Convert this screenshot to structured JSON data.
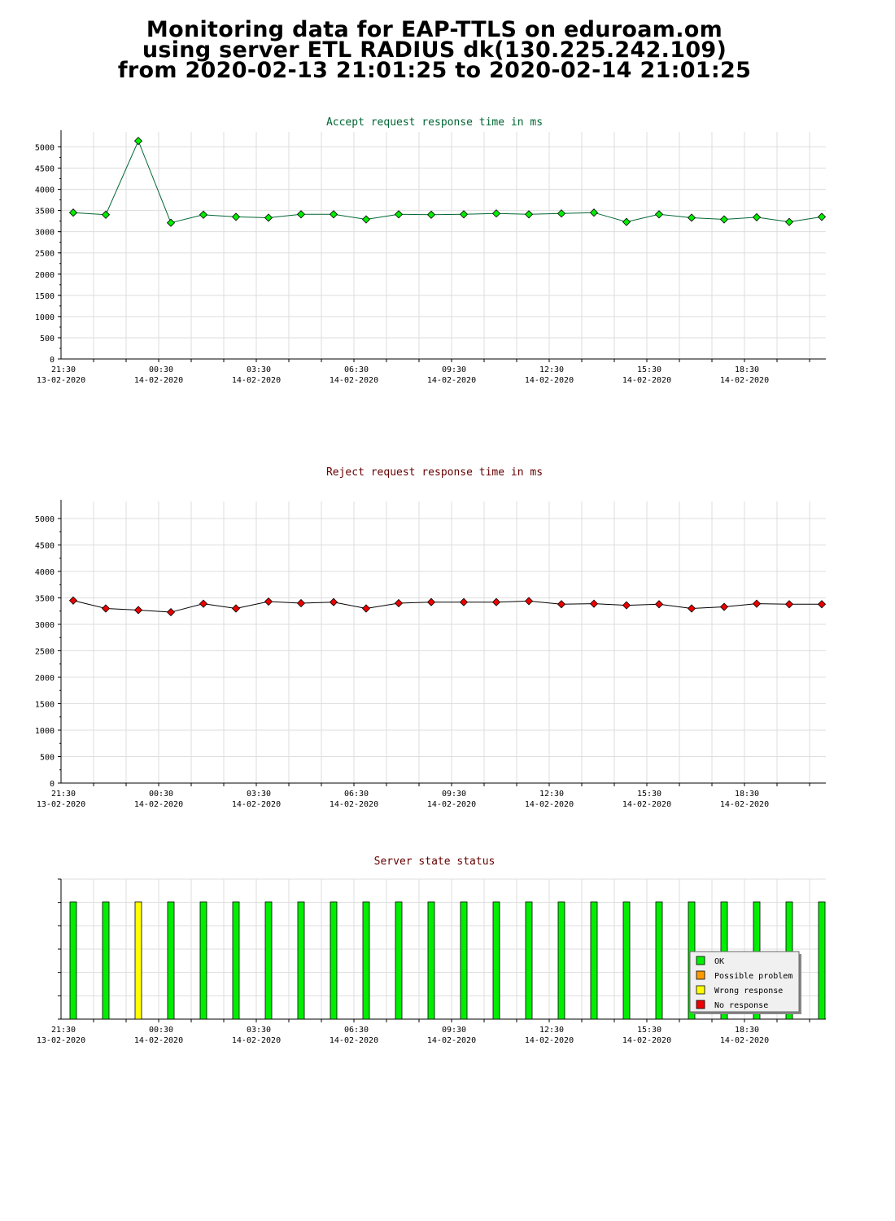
{
  "page": {
    "title_line1": "Monitoring data for EAP-TTLS on eduroam.om",
    "title_line2": "using server ETL RADIUS dk(130.225.242.109)",
    "title_line3": "from 2020-02-13 21:01:25 to 2020-02-14 21:01:25"
  },
  "chart_data": [
    {
      "type": "line",
      "title": "Accept request response time in ms",
      "title_color": "#006633",
      "marker_color": "#00ee00",
      "line_color": "#006633",
      "ylim": [
        0,
        5200
      ],
      "yticks": [
        0,
        500,
        1000,
        1500,
        2000,
        2500,
        3000,
        3500,
        4000,
        4500,
        5000
      ],
      "grid": true,
      "x_labels": [
        {
          "time": "21:30",
          "date": "13-02-2020"
        },
        {
          "time": "00:30",
          "date": "14-02-2020"
        },
        {
          "time": "03:30",
          "date": "14-02-2020"
        },
        {
          "time": "06:30",
          "date": "14-02-2020"
        },
        {
          "time": "09:30",
          "date": "14-02-2020"
        },
        {
          "time": "12:30",
          "date": "14-02-2020"
        },
        {
          "time": "15:30",
          "date": "14-02-2020"
        },
        {
          "time": "18:30",
          "date": "14-02-2020"
        }
      ],
      "values": [
        3450,
        3400,
        5140,
        3210,
        3400,
        3350,
        3330,
        3410,
        3410,
        3290,
        3410,
        3400,
        3410,
        3430,
        3410,
        3430,
        3450,
        3230,
        3410,
        3330,
        3290,
        3340,
        3230,
        3350
      ]
    },
    {
      "type": "line",
      "title": "Reject request response time in ms",
      "title_color": "#660000",
      "marker_color": "#ee0000",
      "line_color": "#000000",
      "ylim": [
        0,
        5200
      ],
      "yticks": [
        0,
        500,
        1000,
        1500,
        2000,
        2500,
        3000,
        3500,
        4000,
        4500,
        5000
      ],
      "grid": true,
      "x_labels": [
        {
          "time": "21:30",
          "date": "13-02-2020"
        },
        {
          "time": "00:30",
          "date": "14-02-2020"
        },
        {
          "time": "03:30",
          "date": "14-02-2020"
        },
        {
          "time": "06:30",
          "date": "14-02-2020"
        },
        {
          "time": "09:30",
          "date": "14-02-2020"
        },
        {
          "time": "12:30",
          "date": "14-02-2020"
        },
        {
          "time": "15:30",
          "date": "14-02-2020"
        },
        {
          "time": "18:30",
          "date": "14-02-2020"
        }
      ],
      "values": [
        3450,
        3300,
        3270,
        3230,
        3390,
        3300,
        3430,
        3400,
        3420,
        3300,
        3400,
        3420,
        3420,
        3420,
        3440,
        3380,
        3390,
        3360,
        3380,
        3300,
        3330,
        3390,
        3380,
        3380
      ]
    },
    {
      "type": "bar",
      "title": "Server state status",
      "title_color": "#660000",
      "grid": true,
      "x_labels": [
        {
          "time": "21:30",
          "date": "13-02-2020"
        },
        {
          "time": "00:30",
          "date": "14-02-2020"
        },
        {
          "time": "03:30",
          "date": "14-02-2020"
        },
        {
          "time": "06:30",
          "date": "14-02-2020"
        },
        {
          "time": "09:30",
          "date": "14-02-2020"
        },
        {
          "time": "12:30",
          "date": "14-02-2020"
        },
        {
          "time": "15:30",
          "date": "14-02-2020"
        },
        {
          "time": "18:30",
          "date": "14-02-2020"
        }
      ],
      "states": [
        "OK",
        "OK",
        "Wrong response",
        "OK",
        "OK",
        "OK",
        "OK",
        "OK",
        "OK",
        "OK",
        "OK",
        "OK",
        "OK",
        "OK",
        "OK",
        "OK",
        "OK",
        "OK",
        "OK",
        "OK",
        "OK",
        "OK",
        "OK",
        "OK"
      ],
      "legend_position": "bottom-right",
      "legend": [
        {
          "label": "OK",
          "color": "#00ee00"
        },
        {
          "label": "Possible problem",
          "color": "#ff9900"
        },
        {
          "label": "Wrong response",
          "color": "#ffff00"
        },
        {
          "label": "No response",
          "color": "#ee0000"
        }
      ]
    }
  ]
}
